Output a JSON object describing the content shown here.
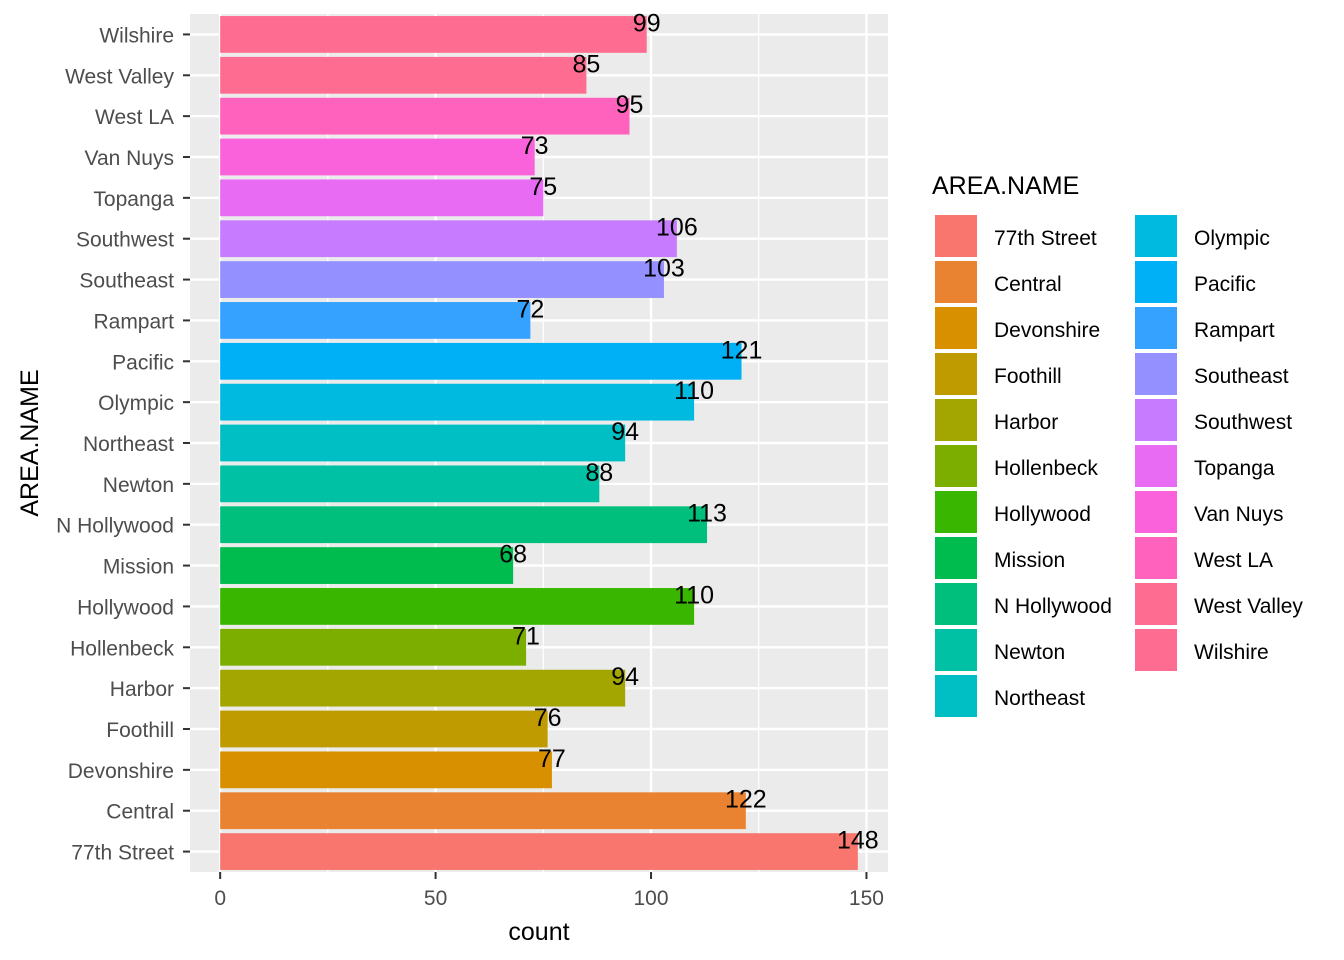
{
  "chart_data": {
    "type": "bar",
    "orientation": "horizontal",
    "title": "",
    "xlabel": "count",
    "ylabel": "AREA.NAME",
    "xlim": [
      -7,
      155
    ],
    "x_ticks": [
      0,
      50,
      100,
      150
    ],
    "grid": true,
    "legend": {
      "title": "AREA.NAME",
      "placement": "right",
      "columns": 2
    },
    "categories": [
      "77th Street",
      "Central",
      "Devonshire",
      "Foothill",
      "Harbor",
      "Hollenbeck",
      "Hollywood",
      "Mission",
      "N Hollywood",
      "Newton",
      "Northeast",
      "Olympic",
      "Pacific",
      "Rampart",
      "Southeast",
      "Southwest",
      "Topanga",
      "Van Nuys",
      "West LA",
      "West Valley",
      "Wilshire"
    ],
    "values": [
      148,
      122,
      77,
      76,
      94,
      71,
      110,
      68,
      113,
      88,
      94,
      110,
      121,
      72,
      103,
      106,
      75,
      73,
      95,
      85,
      99
    ],
    "colors": [
      "#F8766D",
      "#EA8331",
      "#D89000",
      "#C09B00",
      "#A3A500",
      "#7CAE00",
      "#39B600",
      "#00BB4E",
      "#00BF7D",
      "#00C1A3",
      "#00BFC4",
      "#00BAE0",
      "#00B0F6",
      "#35A2FF",
      "#9590FF",
      "#C77CFF",
      "#E76BF3",
      "#FA62DB",
      "#FF62BC",
      "#FF6C91",
      "#FF6C91"
    ]
  }
}
